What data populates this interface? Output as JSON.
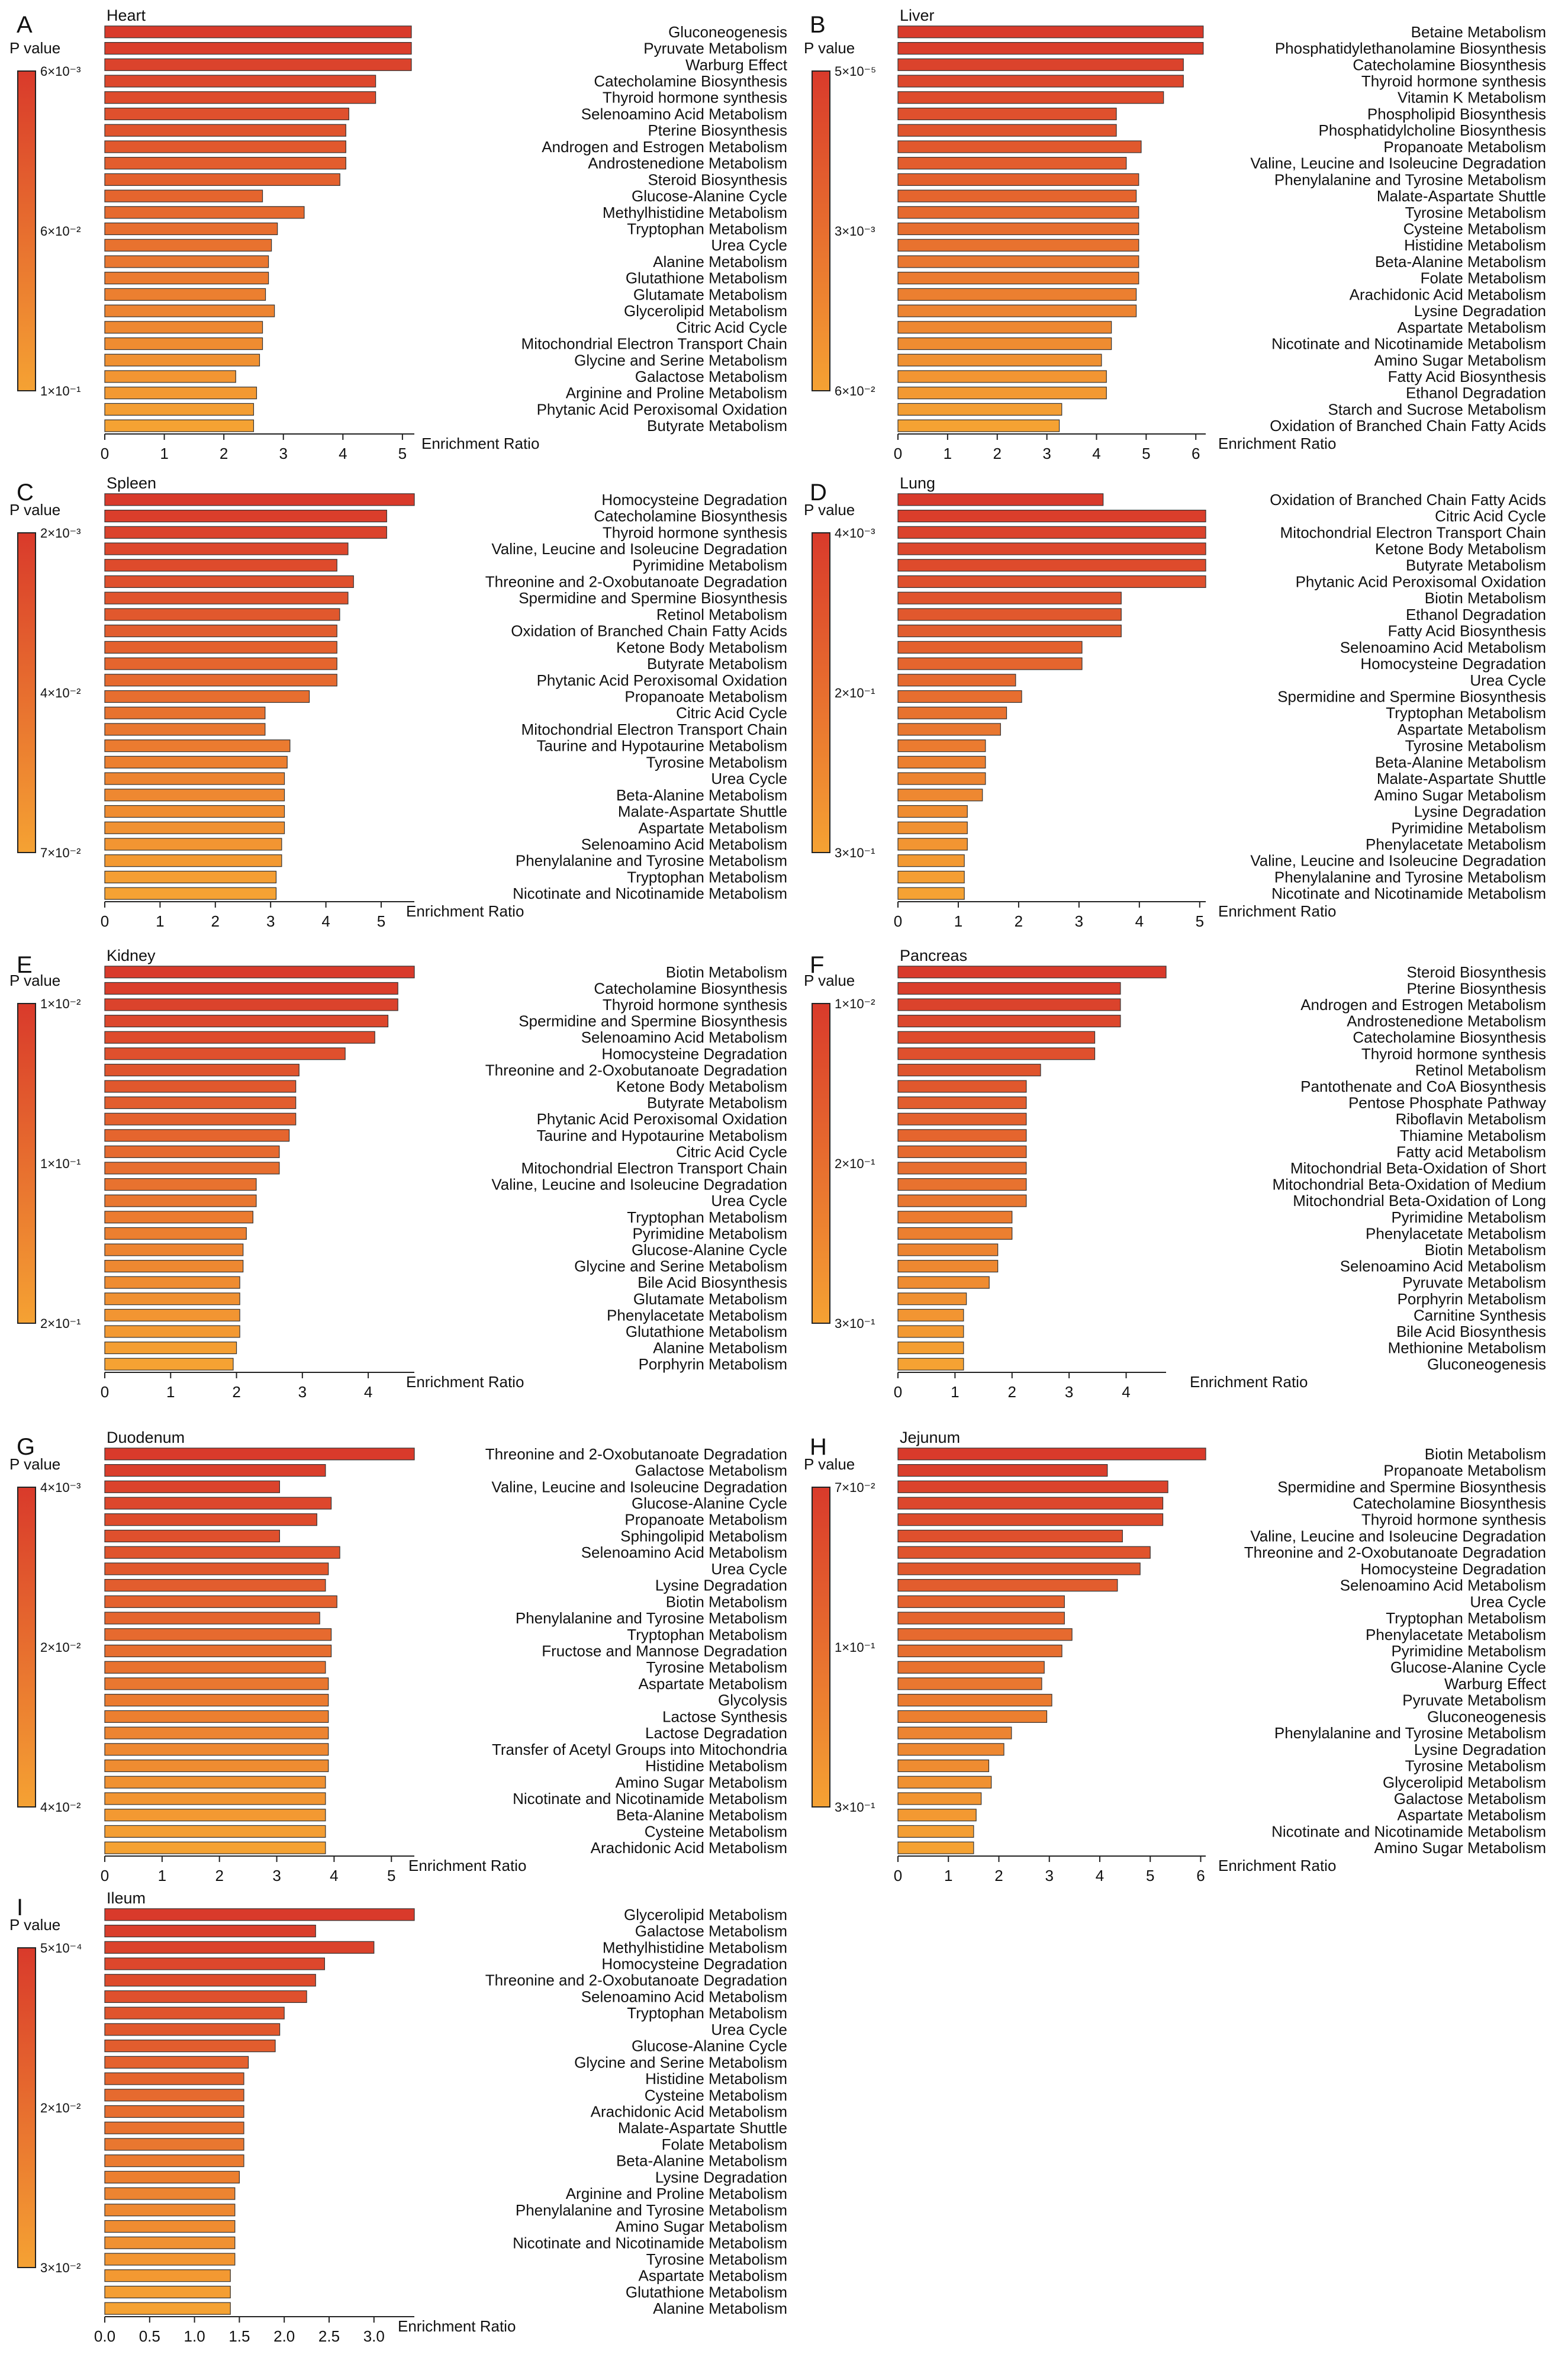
{
  "figure": {
    "colors": {
      "high": "#d93a2b",
      "low": "#f5a233",
      "bar_stroke": "#333333"
    },
    "common": {
      "xlabel": "Enrichment Ratio",
      "legend_title": "P value"
    }
  },
  "chart_data": [
    {
      "id": "A",
      "panel_letter": "A",
      "type": "bar",
      "orientation": "horizontal",
      "title": "Heart",
      "xlabel": "Enrichment Ratio",
      "xlim": [
        0,
        5.2
      ],
      "xticks": [
        "0",
        "1",
        "2",
        "3",
        "4",
        "5"
      ],
      "xtick_values": [
        0,
        1,
        2,
        3,
        4,
        5
      ],
      "legend": {
        "title": "P value",
        "ticks": [
          "6×10⁻³",
          "6×10⁻²",
          "1×10⁻¹"
        ]
      },
      "categories": [
        "Gluconeogenesis",
        "Pyruvate Metabolism",
        "Warburg Effect",
        "Catecholamine Biosynthesis",
        "Thyroid hormone synthesis",
        "Selenoamino Acid Metabolism",
        "Pterine Biosynthesis",
        "Androgen and Estrogen Metabolism",
        "Androstenedione Metabolism",
        "Steroid Biosynthesis",
        "Glucose-Alanine Cycle",
        "Methylhistidine Metabolism",
        "Tryptophan Metabolism",
        "Urea Cycle",
        "Alanine Metabolism",
        "Glutathione Metabolism",
        "Glutamate Metabolism",
        "Glycerolipid Metabolism",
        "Citric Acid Cycle",
        "Mitochondrial Electron Transport Chain",
        "Glycine and Serine Metabolism",
        "Galactose Metabolism",
        "Arginine and Proline Metabolism",
        "Phytanic Acid Peroxisomal Oxidation",
        "Butyrate Metabolism"
      ],
      "values": [
        5.15,
        5.15,
        5.15,
        4.55,
        4.55,
        4.1,
        4.05,
        4.05,
        4.05,
        3.95,
        2.65,
        3.35,
        2.9,
        2.8,
        2.75,
        2.75,
        2.7,
        2.85,
        2.65,
        2.65,
        2.6,
        2.2,
        2.55,
        2.5,
        2.5
      ]
    },
    {
      "id": "B",
      "panel_letter": "B",
      "type": "bar",
      "orientation": "horizontal",
      "title": "Liver",
      "xlabel": "Enrichment Ratio",
      "xlim": [
        0,
        6.2
      ],
      "xticks": [
        "0",
        "1",
        "2",
        "3",
        "4",
        "5",
        "6"
      ],
      "xtick_values": [
        0,
        1,
        2,
        3,
        4,
        5,
        6
      ],
      "legend": {
        "title": "P value",
        "ticks": [
          "5×10⁻⁵",
          "3×10⁻³",
          "6×10⁻²"
        ]
      },
      "categories": [
        "Betaine Metabolism",
        "Phosphatidylethanolamine Biosynthesis",
        "Catecholamine Biosynthesis",
        "Thyroid hormone synthesis",
        "Vitamin K Metabolism",
        "Phospholipid Biosynthesis",
        "Phosphatidylcholine Biosynthesis",
        "Propanoate Metabolism",
        "Valine, Leucine and Isoleucine Degradation",
        "Phenylalanine and Tyrosine Metabolism",
        "Malate-Aspartate Shuttle",
        "Tyrosine Metabolism",
        "Cysteine Metabolism",
        "Histidine Metabolism",
        "Beta-Alanine Metabolism",
        "Folate Metabolism",
        "Arachidonic Acid Metabolism",
        "Lysine Degradation",
        "Aspartate Metabolism",
        "Nicotinate and Nicotinamide Metabolism",
        "Amino Sugar Metabolism",
        "Fatty Acid Biosynthesis",
        "Ethanol Degradation",
        "Starch and Sucrose Metabolism",
        "Oxidation of Branched Chain Fatty Acids"
      ],
      "values": [
        6.15,
        6.15,
        5.75,
        5.75,
        5.35,
        4.4,
        4.4,
        4.9,
        4.6,
        4.85,
        4.8,
        4.85,
        4.85,
        4.85,
        4.85,
        4.85,
        4.8,
        4.8,
        4.3,
        4.3,
        4.1,
        4.2,
        4.2,
        3.3,
        3.25
      ]
    },
    {
      "id": "C",
      "panel_letter": "C",
      "type": "bar",
      "orientation": "horizontal",
      "title": "Spleen",
      "xlabel": "Enrichment Ratio",
      "xlim": [
        0,
        5.6
      ],
      "xticks": [
        "0",
        "1",
        "2",
        "3",
        "4",
        "5"
      ],
      "xtick_values": [
        0,
        1,
        2,
        3,
        4,
        5
      ],
      "legend": {
        "title": "P value",
        "ticks": [
          "2×10⁻³",
          "4×10⁻²",
          "7×10⁻²"
        ]
      },
      "categories": [
        "Homocysteine Degradation",
        "Catecholamine Biosynthesis",
        "Thyroid hormone synthesis",
        "Valine, Leucine and Isoleucine Degradation",
        "Pyrimidine Metabolism",
        "Threonine and 2-Oxobutanoate Degradation",
        "Spermidine and Spermine Biosynthesis",
        "Retinol Metabolism",
        "Oxidation of Branched Chain Fatty Acids",
        "Ketone Body Metabolism",
        "Butyrate Metabolism",
        "Phytanic Acid Peroxisomal Oxidation",
        "Propanoate Metabolism",
        "Citric Acid Cycle",
        "Mitochondrial Electron Transport Chain",
        "Taurine and Hypotaurine Metabolism",
        "Tyrosine Metabolism",
        "Urea Cycle",
        "Beta-Alanine Metabolism",
        "Malate-Aspartate Shuttle",
        "Aspartate Metabolism",
        "Selenoamino Acid Metabolism",
        "Phenylalanine and Tyrosine Metabolism",
        "Tryptophan Metabolism",
        "Nicotinate and Nicotinamide Metabolism"
      ],
      "values": [
        5.6,
        5.1,
        5.1,
        4.4,
        4.2,
        4.5,
        4.4,
        4.25,
        4.2,
        4.2,
        4.2,
        4.2,
        3.7,
        2.9,
        2.9,
        3.35,
        3.3,
        3.25,
        3.25,
        3.25,
        3.25,
        3.2,
        3.2,
        3.1,
        3.1
      ]
    },
    {
      "id": "D",
      "panel_letter": "D",
      "type": "bar",
      "orientation": "horizontal",
      "title": "Lung",
      "xlabel": "Enrichment Ratio",
      "xlim": [
        0,
        5.1
      ],
      "xticks": [
        "0",
        "1",
        "2",
        "3",
        "4",
        "5"
      ],
      "xtick_values": [
        0,
        1,
        2,
        3,
        4,
        5
      ],
      "legend": {
        "title": "P value",
        "ticks": [
          "4×10⁻³",
          "2×10⁻¹",
          "3×10⁻¹"
        ]
      },
      "categories": [
        "Oxidation of Branched Chain Fatty Acids",
        "Citric Acid Cycle",
        "Mitochondrial Electron Transport Chain",
        "Ketone Body Metabolism",
        "Butyrate Metabolism",
        "Phytanic Acid Peroxisomal Oxidation",
        "Biotin Metabolism",
        "Ethanol Degradation",
        "Fatty Acid Biosynthesis",
        "Selenoamino Acid Metabolism",
        "Homocysteine Degradation",
        "Urea Cycle",
        "Spermidine and Spermine Biosynthesis",
        "Tryptophan Metabolism",
        "Aspartate Metabolism",
        "Tyrosine Metabolism",
        "Beta-Alanine Metabolism",
        "Malate-Aspartate Shuttle",
        "Amino Sugar Metabolism",
        "Lysine Degradation",
        "Pyrimidine Metabolism",
        "Phenylacetate Metabolism",
        "Valine, Leucine and Isoleucine Degradation",
        "Phenylalanine and Tyrosine Metabolism",
        "Nicotinate and Nicotinamide Metabolism"
      ],
      "values": [
        3.4,
        5.1,
        5.1,
        5.1,
        5.1,
        5.1,
        3.7,
        3.7,
        3.7,
        3.05,
        3.05,
        1.95,
        2.05,
        1.8,
        1.7,
        1.45,
        1.45,
        1.45,
        1.4,
        1.15,
        1.15,
        1.15,
        1.1,
        1.1,
        1.1
      ]
    },
    {
      "id": "E",
      "panel_letter": "E",
      "type": "bar",
      "orientation": "horizontal",
      "title": "Kidney",
      "xlabel": "Enrichment Ratio",
      "xlim": [
        0,
        4.7
      ],
      "xticks": [
        "0",
        "1",
        "2",
        "3",
        "4"
      ],
      "xtick_values": [
        0,
        1,
        2,
        3,
        4
      ],
      "legend": {
        "title": "P value",
        "ticks": [
          "1×10⁻²",
          "1×10⁻¹",
          "2×10⁻¹"
        ]
      },
      "categories": [
        "Biotin Metabolism",
        "Catecholamine Biosynthesis",
        "Thyroid hormone synthesis",
        "Spermidine and Spermine Biosynthesis",
        "Selenoamino Acid Metabolism",
        "Homocysteine Degradation",
        "Threonine and 2-Oxobutanoate Degradation",
        "Ketone Body Metabolism",
        "Butyrate Metabolism",
        "Phytanic Acid Peroxisomal Oxidation",
        "Taurine and Hypotaurine Metabolism",
        "Citric Acid Cycle",
        "Mitochondrial Electron Transport Chain",
        "Valine, Leucine and Isoleucine Degradation",
        "Urea Cycle",
        "Tryptophan Metabolism",
        "Pyrimidine Metabolism",
        "Glucose-Alanine Cycle",
        "Glycine and Serine Metabolism",
        "Bile Acid Biosynthesis",
        "Glutamate Metabolism",
        "Phenylacetate Metabolism",
        "Glutathione Metabolism",
        "Alanine Metabolism",
        "Porphyrin Metabolism"
      ],
      "values": [
        4.7,
        4.45,
        4.45,
        4.3,
        4.1,
        3.65,
        2.95,
        2.9,
        2.9,
        2.9,
        2.8,
        2.65,
        2.65,
        2.3,
        2.3,
        2.25,
        2.15,
        2.1,
        2.1,
        2.05,
        2.05,
        2.05,
        2.05,
        2.0,
        1.95
      ]
    },
    {
      "id": "F",
      "panel_letter": "F",
      "type": "bar",
      "orientation": "horizontal",
      "title": "Pancreas",
      "xlabel": "Enrichment Ratio",
      "xlim": [
        0,
        4.7
      ],
      "xticks": [
        "0",
        "1",
        "2",
        "3",
        "4"
      ],
      "xtick_values": [
        0,
        1,
        2,
        3,
        4
      ],
      "legend": {
        "title": "P value",
        "ticks": [
          "1×10⁻²",
          "2×10⁻¹",
          "3×10⁻¹"
        ]
      },
      "categories": [
        "Steroid Biosynthesis",
        "Pterine Biosynthesis",
        "Androgen and Estrogen Metabolism",
        "Androstenedione Metabolism",
        "Catecholamine Biosynthesis",
        "Thyroid hormone synthesis",
        "Retinol Metabolism",
        "Pantothenate and CoA Biosynthesis",
        "Pentose Phosphate Pathway",
        "Riboflavin Metabolism",
        "Thiamine Metabolism",
        "Fatty acid Metabolism",
        "Mitochondrial Beta-Oxidation of Short",
        "Mitochondrial Beta-Oxidation of Medium",
        "Mitochondrial Beta-Oxidation of Long",
        "Pyrimidine Metabolism",
        "Phenylacetate Metabolism",
        "Biotin Metabolism",
        "Selenoamino Acid Metabolism",
        "Pyruvate Metabolism",
        "Porphyrin Metabolism",
        "Carnitine Synthesis",
        "Bile Acid Biosynthesis",
        "Methionine Metabolism",
        "Gluconeogenesis"
      ],
      "values": [
        4.7,
        3.9,
        3.9,
        3.9,
        3.45,
        3.45,
        2.5,
        2.25,
        2.25,
        2.25,
        2.25,
        2.25,
        2.25,
        2.25,
        2.25,
        2.0,
        2.0,
        1.75,
        1.75,
        1.6,
        1.2,
        1.15,
        1.15,
        1.15,
        1.15
      ]
    },
    {
      "id": "G",
      "panel_letter": "G",
      "type": "bar",
      "orientation": "horizontal",
      "title": "Duodenum",
      "xlabel": "Enrichment Ratio",
      "xlim": [
        0,
        5.4
      ],
      "xticks": [
        "0",
        "1",
        "2",
        "3",
        "4",
        "5"
      ],
      "xtick_values": [
        0,
        1,
        2,
        3,
        4,
        5
      ],
      "legend": {
        "title": "P value",
        "ticks": [
          "4×10⁻³",
          "2×10⁻²",
          "4×10⁻²"
        ]
      },
      "categories": [
        "Threonine and 2-Oxobutanoate Degradation",
        "Galactose Metabolism",
        "Valine, Leucine and Isoleucine Degradation",
        "Glucose-Alanine Cycle",
        "Propanoate Metabolism",
        "Sphingolipid Metabolism",
        "Selenoamino Acid Metabolism",
        "Urea Cycle",
        "Lysine Degradation",
        "Biotin Metabolism",
        "Phenylalanine and Tyrosine Metabolism",
        "Tryptophan Metabolism",
        "Fructose and Mannose Degradation",
        "Tyrosine Metabolism",
        "Aspartate Metabolism",
        "Glycolysis",
        "Lactose Synthesis",
        "Lactose Degradation",
        "Transfer of Acetyl Groups into Mitochondria",
        "Histidine Metabolism",
        "Amino Sugar Metabolism",
        "Nicotinate and Nicotinamide Metabolism",
        "Beta-Alanine Metabolism",
        "Cysteine Metabolism",
        "Arachidonic Acid Metabolism"
      ],
      "values": [
        5.4,
        3.85,
        3.05,
        3.95,
        3.7,
        3.05,
        4.1,
        3.9,
        3.85,
        4.05,
        3.75,
        3.95,
        3.95,
        3.85,
        3.9,
        3.9,
        3.9,
        3.9,
        3.9,
        3.9,
        3.85,
        3.85,
        3.85,
        3.85,
        3.85
      ]
    },
    {
      "id": "H",
      "panel_letter": "H",
      "type": "bar",
      "orientation": "horizontal",
      "title": "Jejunum",
      "xlabel": "Enrichment Ratio",
      "xlim": [
        0,
        6.1
      ],
      "xticks": [
        "0",
        "1",
        "2",
        "3",
        "4",
        "5",
        "6"
      ],
      "xtick_values": [
        0,
        1,
        2,
        3,
        4,
        5,
        6
      ],
      "legend": {
        "title": "P value",
        "ticks": [
          "7×10⁻²",
          "1×10⁻¹",
          "3×10⁻¹"
        ]
      },
      "categories": [
        "Biotin Metabolism",
        "Propanoate Metabolism",
        "Spermidine and Spermine Biosynthesis",
        "Catecholamine Biosynthesis",
        "Thyroid hormone synthesis",
        "Valine, Leucine and Isoleucine Degradation",
        "Threonine and 2-Oxobutanoate Degradation",
        "Homocysteine Degradation",
        "Selenoamino Acid Metabolism",
        "Urea Cycle",
        "Tryptophan Metabolism",
        "Phenylacetate Metabolism",
        "Pyrimidine Metabolism",
        "Glucose-Alanine Cycle",
        "Warburg Effect",
        "Pyruvate Metabolism",
        "Gluconeogenesis",
        "Phenylalanine and Tyrosine Metabolism",
        "Lysine Degradation",
        "Tyrosine Metabolism",
        "Glycerolipid Metabolism",
        "Galactose Metabolism",
        "Aspartate Metabolism",
        "Nicotinate and Nicotinamide Metabolism",
        "Amino Sugar Metabolism"
      ],
      "values": [
        6.1,
        4.15,
        5.35,
        5.25,
        5.25,
        4.45,
        5.0,
        4.8,
        4.35,
        3.3,
        3.3,
        3.45,
        3.25,
        2.9,
        2.85,
        3.05,
        2.95,
        2.25,
        2.1,
        1.8,
        1.85,
        1.65,
        1.55,
        1.5,
        1.5
      ]
    },
    {
      "id": "I",
      "panel_letter": "I",
      "type": "bar",
      "orientation": "horizontal",
      "title": "Ileum",
      "xlabel": "Enrichment Ratio",
      "xlim": [
        0,
        3.45
      ],
      "xticks": [
        "0.0",
        "0.5",
        "1.0",
        "1.5",
        "2.0",
        "2.5",
        "3.0"
      ],
      "xtick_values": [
        0,
        0.5,
        1,
        1.5,
        2,
        2.5,
        3
      ],
      "legend": {
        "title": "P value",
        "ticks": [
          "5×10⁻⁴",
          "2×10⁻²",
          "3×10⁻²"
        ]
      },
      "categories": [
        "Glycerolipid Metabolism",
        "Galactose Metabolism",
        "Methylhistidine Metabolism",
        "Homocysteine Degradation",
        "Threonine and 2-Oxobutanoate Degradation",
        "Selenoamino Acid Metabolism",
        "Tryptophan Metabolism",
        "Urea Cycle",
        "Glucose-Alanine Cycle",
        "Glycine and Serine Metabolism",
        "Histidine Metabolism",
        "Cysteine Metabolism",
        "Arachidonic Acid Metabolism",
        "Malate-Aspartate Shuttle",
        "Folate Metabolism",
        "Beta-Alanine Metabolism",
        "Lysine Degradation",
        "Arginine and Proline Metabolism",
        "Phenylalanine and Tyrosine Metabolism",
        "Amino Sugar Metabolism",
        "Nicotinate and Nicotinamide Metabolism",
        "Tyrosine Metabolism",
        "Aspartate Metabolism",
        "Glutathione Metabolism",
        "Alanine Metabolism"
      ],
      "values": [
        3.45,
        2.35,
        3.0,
        2.45,
        2.35,
        2.25,
        2.0,
        1.95,
        1.9,
        1.6,
        1.55,
        1.55,
        1.55,
        1.55,
        1.55,
        1.55,
        1.5,
        1.45,
        1.45,
        1.45,
        1.45,
        1.45,
        1.4,
        1.4,
        1.4
      ]
    }
  ]
}
